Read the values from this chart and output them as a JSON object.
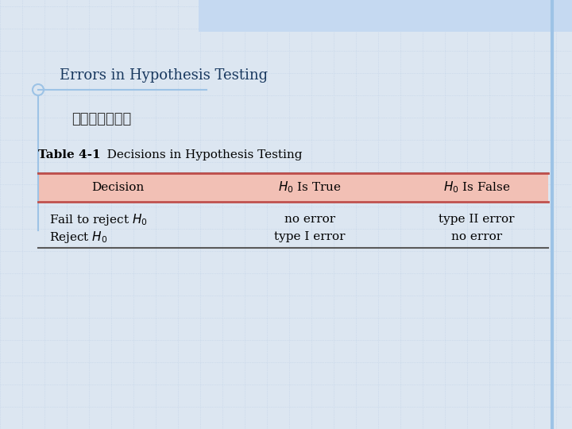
{
  "title": "Errors in Hypothesis Testing",
  "subtitle": "檢定結果可能為",
  "table_caption_bold": "Table 4-1",
  "table_caption_normal": "   Decisions in Hypothesis Testing",
  "bg_color": "#dce6f1",
  "top_banner_color": "#c5d9f1",
  "grid_color": "#b8cce4",
  "title_color": "#4f6228",
  "title_color2": "#17375e",
  "header_bg": "#f2c0b5",
  "header_border": "#c0504d",
  "table_line_color": "#595959",
  "col_headers": [
    "Decision",
    "$H_0$ Is True",
    "$H_0$ Is False"
  ],
  "row1_col0": "Fail to reject $H_0$",
  "row1_col1": "no error",
  "row1_col2": "type II error",
  "row2_col0": "Reject $H_0$",
  "row2_col1": "type I error",
  "row2_col2": "no error",
  "right_bar_color": "#9dc3e6",
  "circle_color": "#9dc3e6"
}
